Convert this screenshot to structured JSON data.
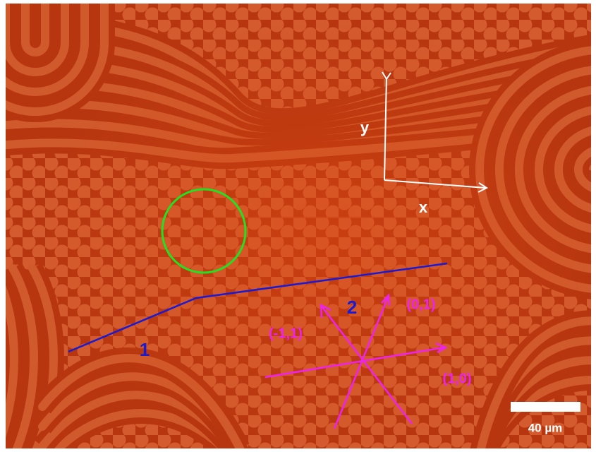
{
  "annotations": {
    "axis_y": "y",
    "axis_x": "x",
    "path_labels": [
      "1",
      "2"
    ],
    "directions": [
      "(0,1)",
      "(-1,1)",
      "(1,0)"
    ],
    "scale_bar": "40 µm"
  }
}
